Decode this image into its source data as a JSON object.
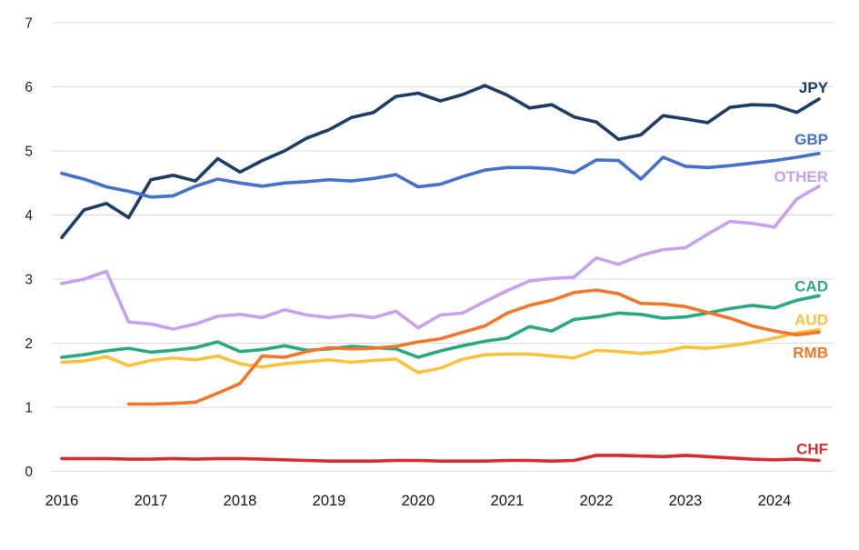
{
  "page": {
    "background": "#ffffff",
    "gridline_color": "#d9dbdf",
    "axis_text_color": "#1c1e21"
  },
  "chart_data": {
    "type": "line",
    "title": "",
    "xlabel": "",
    "ylabel": "",
    "x_start": 2016.0,
    "x_step": 0.25,
    "xlim": [
      2016.0,
      2024.5
    ],
    "ylim": [
      0,
      7
    ],
    "y_ticks": [
      0,
      1,
      2,
      3,
      4,
      5,
      6,
      7
    ],
    "x_tick_labels": [
      "2016",
      "2017",
      "2018",
      "2019",
      "2020",
      "2021",
      "2022",
      "2023",
      "2024"
    ],
    "x_tick_values": [
      2016,
      2017,
      2018,
      2019,
      2020,
      2021,
      2022,
      2023,
      2024
    ],
    "grid": true,
    "legend_position": "direct-labels-right",
    "series": [
      {
        "name": "JPY",
        "color": "#1c3c63",
        "values": [
          3.65,
          4.08,
          4.18,
          3.96,
          4.55,
          4.62,
          4.53,
          4.88,
          4.67,
          4.85,
          5.0,
          5.2,
          5.33,
          5.52,
          5.6,
          5.85,
          5.9,
          5.78,
          5.88,
          6.02,
          5.87,
          5.67,
          5.72,
          5.53,
          5.45,
          5.18,
          5.25,
          5.55,
          5.5,
          5.44,
          5.68,
          5.72,
          5.71,
          5.6,
          5.81
        ]
      },
      {
        "name": "GBP",
        "color": "#4470c9",
        "values": [
          4.65,
          4.56,
          4.44,
          4.37,
          4.28,
          4.3,
          4.45,
          4.56,
          4.5,
          4.45,
          4.5,
          4.52,
          4.55,
          4.53,
          4.57,
          4.63,
          4.44,
          4.48,
          4.6,
          4.7,
          4.74,
          4.74,
          4.72,
          4.66,
          4.86,
          4.85,
          4.56,
          4.9,
          4.76,
          4.74,
          4.77,
          4.81,
          4.85,
          4.9,
          4.96
        ]
      },
      {
        "name": "OTHER",
        "color": "#c7a1ef",
        "values": [
          2.93,
          3.0,
          3.12,
          2.33,
          2.3,
          2.22,
          2.3,
          2.42,
          2.45,
          2.4,
          2.52,
          2.44,
          2.4,
          2.44,
          2.4,
          2.5,
          2.24,
          2.44,
          2.47,
          2.65,
          2.82,
          2.97,
          3.01,
          3.03,
          3.33,
          3.23,
          3.37,
          3.46,
          3.49,
          3.7,
          3.9,
          3.87,
          3.81,
          4.25,
          4.45
        ]
      },
      {
        "name": "CAD",
        "color": "#29a87d",
        "values": [
          1.78,
          1.82,
          1.88,
          1.92,
          1.86,
          1.89,
          1.93,
          2.02,
          1.87,
          1.9,
          1.96,
          1.89,
          1.91,
          1.95,
          1.93,
          1.91,
          1.78,
          1.88,
          1.96,
          2.03,
          2.08,
          2.26,
          2.19,
          2.37,
          2.41,
          2.47,
          2.45,
          2.39,
          2.41,
          2.47,
          2.54,
          2.59,
          2.55,
          2.67,
          2.74
        ]
      },
      {
        "name": "AUD",
        "color": "#f9c13c",
        "values": [
          1.7,
          1.72,
          1.79,
          1.65,
          1.73,
          1.77,
          1.74,
          1.8,
          1.68,
          1.63,
          1.68,
          1.71,
          1.74,
          1.7,
          1.73,
          1.75,
          1.54,
          1.61,
          1.75,
          1.82,
          1.83,
          1.83,
          1.8,
          1.77,
          1.89,
          1.87,
          1.84,
          1.87,
          1.94,
          1.92,
          1.96,
          2.01,
          2.08,
          2.16,
          2.21
        ]
      },
      {
        "name": "RMB",
        "color": "#f1762b",
        "values": [
          null,
          null,
          null,
          1.05,
          1.05,
          1.06,
          1.08,
          1.22,
          1.37,
          1.8,
          1.78,
          1.87,
          1.93,
          1.91,
          1.92,
          1.95,
          2.02,
          2.07,
          2.17,
          2.27,
          2.47,
          2.59,
          2.67,
          2.79,
          2.83,
          2.77,
          2.62,
          2.61,
          2.57,
          2.48,
          2.39,
          2.27,
          2.19,
          2.13,
          2.17
        ]
      },
      {
        "name": "CHF",
        "color": "#d62b2e",
        "values": [
          0.2,
          0.2,
          0.2,
          0.19,
          0.19,
          0.2,
          0.19,
          0.2,
          0.2,
          0.19,
          0.18,
          0.17,
          0.16,
          0.16,
          0.16,
          0.17,
          0.17,
          0.16,
          0.16,
          0.16,
          0.17,
          0.17,
          0.16,
          0.17,
          0.25,
          0.25,
          0.24,
          0.23,
          0.25,
          0.23,
          0.21,
          0.19,
          0.18,
          0.19,
          0.17
        ]
      }
    ]
  }
}
